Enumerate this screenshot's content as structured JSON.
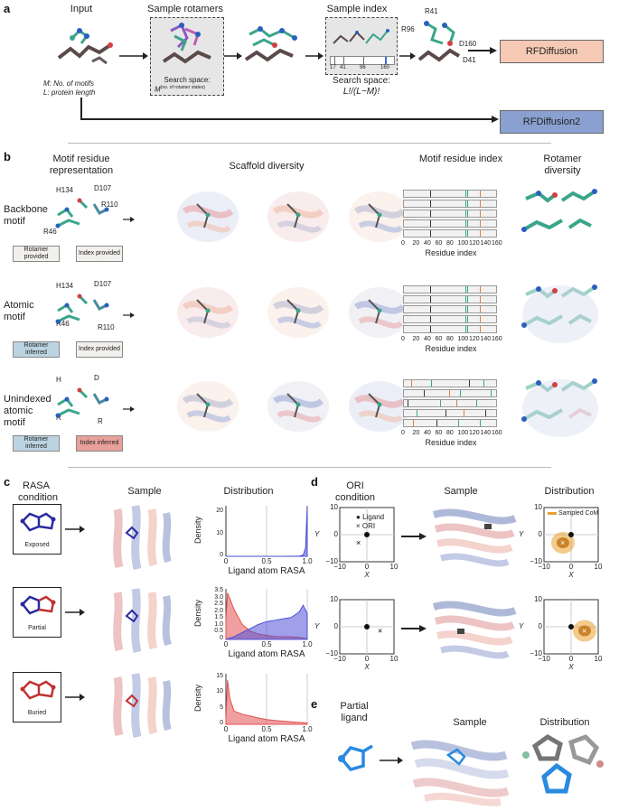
{
  "panel_a": {
    "letter": "a",
    "input_label": "Input",
    "input_note_line1": "M: No. of motifs",
    "input_note_line2": "L: protein length",
    "sample_rotamers_label": "Sample rotamers",
    "rotamer_space_line1": "Search space:",
    "rotamer_space_line2": "M",
    "rotamer_space_sup": "(no. of rotamer states)",
    "sample_index_label": "Sample index",
    "index_ticks": [
      "17",
      "41",
      "96",
      "160"
    ],
    "index_space_line1": "Search space:",
    "index_space_line2": "L!/(L−M)!",
    "residue_labels": [
      "R41",
      "R96",
      "D160",
      "D41"
    ],
    "rfd1_label": "RFDiffusion",
    "rfd2_label": "RFDiffusion2"
  },
  "panel_b": {
    "letter": "b",
    "col_headers": [
      "Motif residue representation",
      "Scaffold diversity",
      "Motif residue index",
      "Rotamer diversity"
    ],
    "rows": [
      {
        "label": "Backbone motif",
        "residues": [
          "H134",
          "D107",
          "R110",
          "R46"
        ],
        "tag_left": "Rotamer provided",
        "tag_right": "Index provided"
      },
      {
        "label": "Atomic motif",
        "residues": [
          "H134",
          "D107",
          "R46",
          "R110"
        ],
        "tag_left": "Rotamer inferred",
        "tag_right": "Index provided"
      },
      {
        "label": "Unindexed atomic motif",
        "residues": [
          "H",
          "D",
          "R",
          "R"
        ],
        "tag_left": "Rotamer inferred",
        "tag_right": "Index inferred"
      }
    ],
    "index_axis_ticks": [
      "0",
      "20",
      "40",
      "60",
      "80",
      "100",
      "120",
      "140",
      "160"
    ],
    "index_axis_label": "Residue index",
    "colors": {
      "tag_provided": "#f2f0ec",
      "tag_rotamer_inferred": "#bcd4e2",
      "tag_index_inferred": "#e8a09a"
    }
  },
  "panel_c": {
    "letter": "c",
    "header_condition": "RASA condition",
    "header_sample": "Sample",
    "header_distribution": "Distribution",
    "conditions": [
      "Exposed",
      "Partial",
      "Buried"
    ],
    "ylabel": "Density",
    "xlabel": "Ligand atom RASA",
    "x_ticks": [
      "0",
      "0.5",
      "1.0"
    ],
    "y_ticks_top": [
      "0",
      "10",
      "20"
    ],
    "y_ticks_mid": [
      "0",
      "0.5",
      "1.0",
      "1.5",
      "2.0",
      "2.5",
      "3.0",
      "3.5"
    ],
    "y_ticks_bot": [
      "0",
      "5",
      "10",
      "15"
    ]
  },
  "panel_d": {
    "letter": "d",
    "header_condition": "ORI condition",
    "header_sample": "Sample",
    "header_distribution": "Distribution",
    "legend_ligand": "Ligand",
    "legend_ori": "ORI",
    "legend_sampled": "Sampled CoM",
    "xlabel": "X",
    "ylabel": "Y",
    "x_ticks": [
      "−10",
      "0",
      "10"
    ],
    "y_ticks": [
      "−10",
      "0",
      "10"
    ]
  },
  "panel_e": {
    "letter": "e",
    "header_partial_line1": "Partial",
    "header_partial_line2": "ligand",
    "header_sample": "Sample",
    "header_distribution": "Distribution"
  },
  "chart_data": [
    {
      "type": "area",
      "title": "",
      "xlabel": "Ligand atom RASA",
      "ylabel": "Density",
      "condition": "Exposed",
      "xlim": [
        0,
        1
      ],
      "ylim": [
        0,
        23
      ],
      "series": [
        {
          "name": "",
          "color": "#4a4fd0",
          "x": [
            0,
            0.1,
            0.3,
            0.5,
            0.7,
            0.9,
            0.95,
            0.98,
            1.0
          ],
          "y": [
            0,
            0,
            0,
            0,
            0,
            0.1,
            0.5,
            4,
            23
          ]
        }
      ]
    },
    {
      "type": "area",
      "title": "",
      "xlabel": "Ligand atom RASA",
      "ylabel": "Density",
      "condition": "Partial",
      "xlim": [
        0,
        1
      ],
      "ylim": [
        0,
        3.7
      ],
      "series": [
        {
          "name": "",
          "color": "#e25050",
          "x": [
            0,
            0.02,
            0.1,
            0.2,
            0.3,
            0.4,
            0.5,
            0.6,
            0.7,
            0.8,
            0.9,
            1.0
          ],
          "y": [
            1.5,
            3.4,
            2.2,
            1.1,
            0.6,
            0.4,
            0.3,
            0.2,
            0.2,
            0.2,
            0.15,
            0.05
          ]
        },
        {
          "name": "",
          "color": "#5050d8",
          "x": [
            0,
            0.1,
            0.2,
            0.3,
            0.4,
            0.5,
            0.6,
            0.7,
            0.8,
            0.9,
            0.95,
            1.0
          ],
          "y": [
            0,
            0.2,
            0.5,
            0.8,
            1.1,
            1.3,
            1.4,
            1.5,
            1.6,
            2.0,
            2.5,
            1.9
          ]
        }
      ]
    },
    {
      "type": "area",
      "title": "",
      "xlabel": "Ligand atom RASA",
      "ylabel": "Density",
      "condition": "Buried",
      "xlim": [
        0,
        1
      ],
      "ylim": [
        0,
        16
      ],
      "series": [
        {
          "name": "",
          "color": "#e25050",
          "x": [
            0,
            0.02,
            0.05,
            0.1,
            0.2,
            0.3,
            0.4,
            0.5,
            0.6,
            0.7,
            0.8,
            0.9,
            1.0
          ],
          "y": [
            2,
            14,
            8,
            4.2,
            3.2,
            2.6,
            2,
            1.5,
            1.2,
            1,
            0.8,
            0.6,
            0.4
          ]
        }
      ]
    },
    {
      "type": "scatter",
      "title": "",
      "xlabel": "X",
      "ylabel": "Y",
      "xlim": [
        -10,
        10
      ],
      "ylim": [
        -10,
        10
      ],
      "series": [
        {
          "name": "Ligand",
          "marker": "circle",
          "x": [
            0
          ],
          "y": [
            0
          ]
        },
        {
          "name": "ORI",
          "marker": "x",
          "x": [
            -3
          ],
          "y": [
            -3
          ]
        }
      ]
    },
    {
      "type": "scatter",
      "title": "",
      "xlabel": "X",
      "ylabel": "Y",
      "xlim": [
        -10,
        10
      ],
      "ylim": [
        -10,
        10
      ],
      "series": [
        {
          "name": "Ligand",
          "marker": "circle",
          "x": [
            0
          ],
          "y": [
            0
          ]
        },
        {
          "name": "ORI",
          "marker": "x",
          "x": [
            5
          ],
          "y": [
            -1.5
          ]
        }
      ]
    }
  ]
}
